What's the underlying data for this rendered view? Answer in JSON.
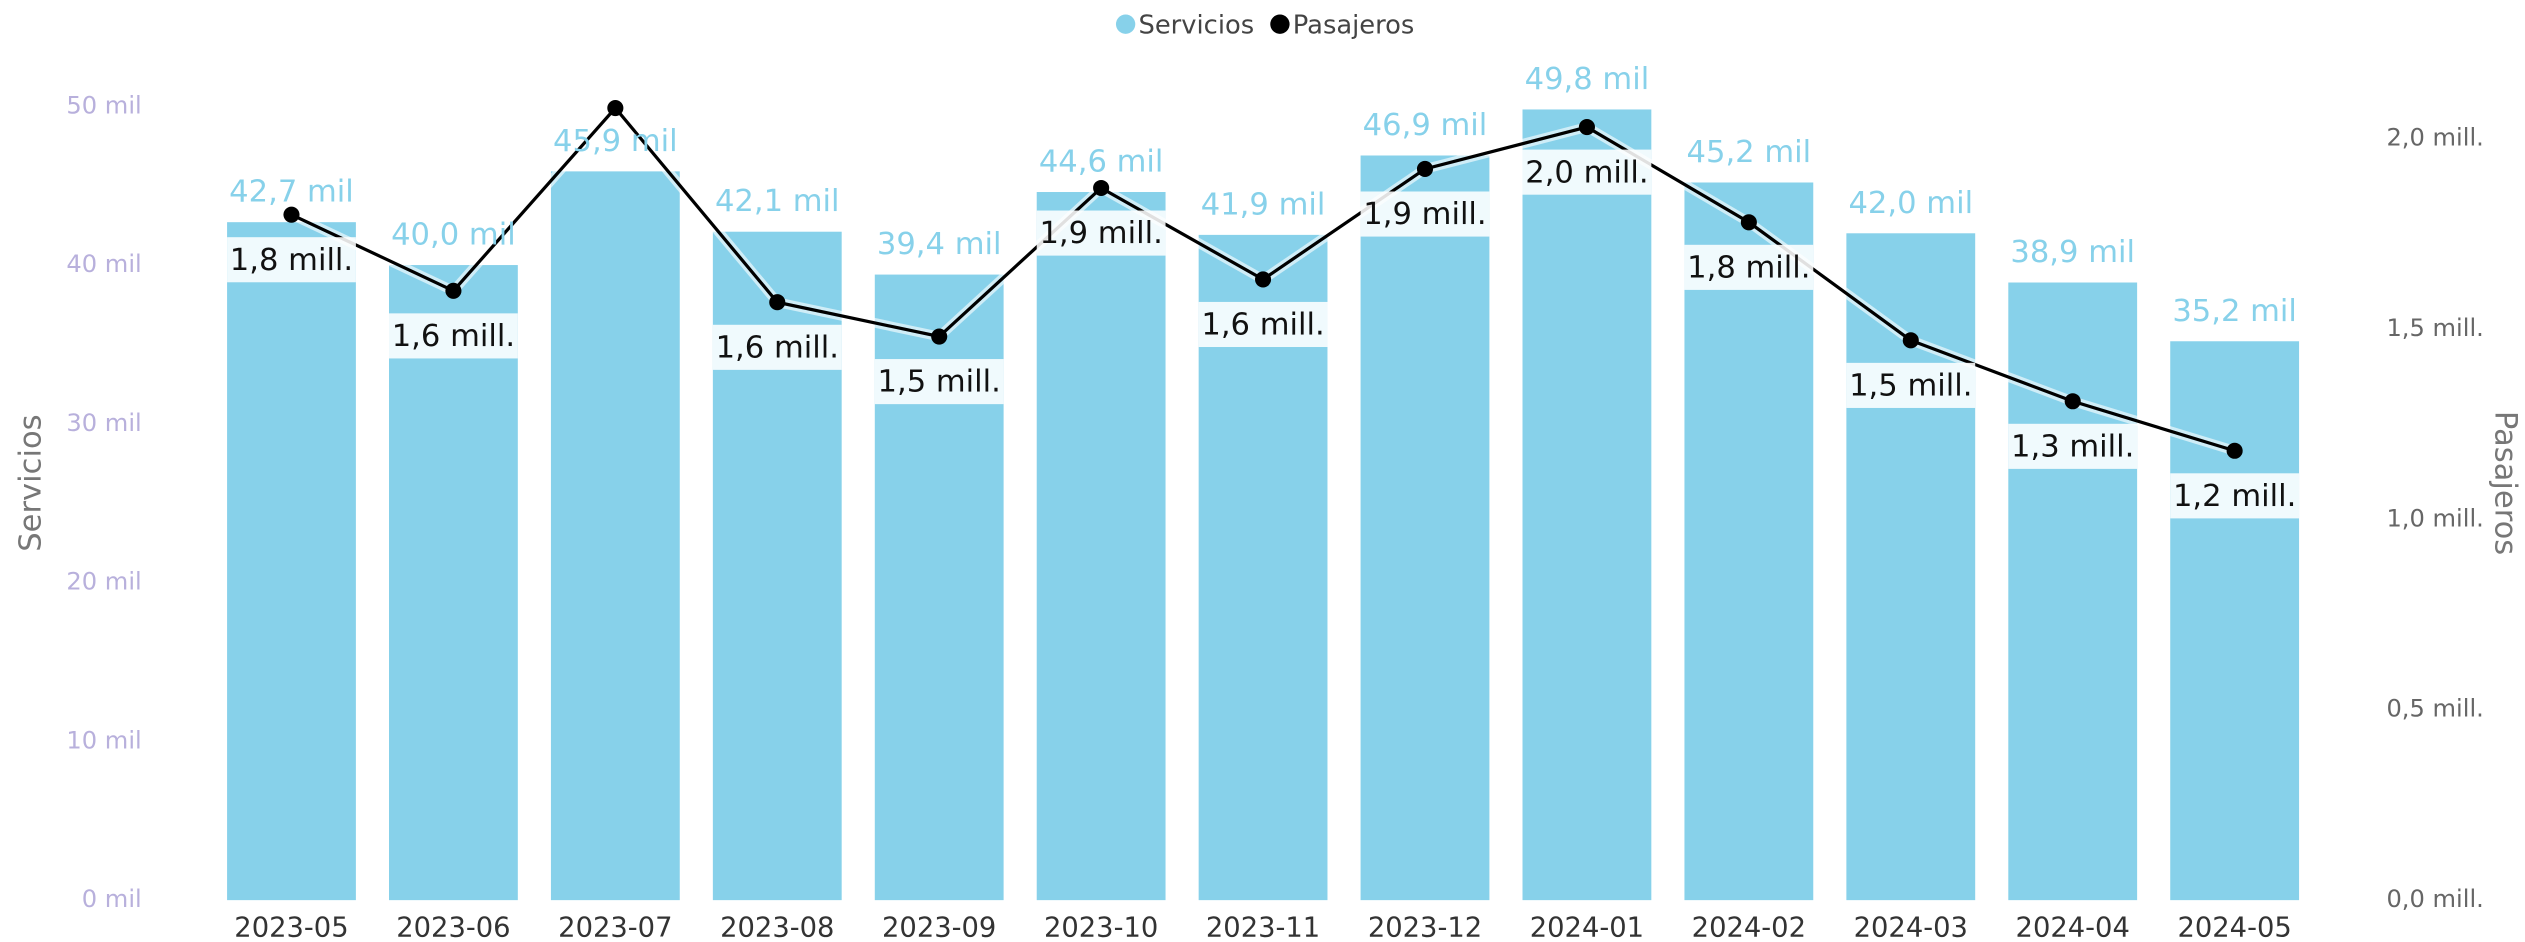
{
  "chart_data": {
    "type": "bar",
    "categories": [
      "2023-05",
      "2023-06",
      "2023-07",
      "2023-08",
      "2023-09",
      "2023-10",
      "2023-11",
      "2023-12",
      "2024-01",
      "2024-02",
      "2024-03",
      "2024-04",
      "2024-05"
    ],
    "series": [
      {
        "name": "Servicios",
        "type": "bar",
        "color": "#87d1ea",
        "values": [
          42.7,
          40.0,
          45.9,
          42.1,
          39.4,
          44.6,
          41.9,
          46.9,
          49.8,
          45.2,
          42.0,
          38.9,
          35.2
        ],
        "value_labels": [
          "42,7 mil",
          "40,0 mil",
          "45,9 mil",
          "42,1 mil",
          "39,4 mil",
          "44,6 mil",
          "41,9 mil",
          "46,9 mil",
          "49,8 mil",
          "45,2 mil",
          "42,0 mil",
          "38,9 mil",
          "35,2 mil"
        ]
      },
      {
        "name": "Pasajeros",
        "type": "line",
        "axis": "y2",
        "color": "#000000",
        "values": [
          1.8,
          1.6,
          2.08,
          1.57,
          1.48,
          1.87,
          1.63,
          1.92,
          2.03,
          1.78,
          1.47,
          1.31,
          1.18
        ],
        "value_labels": [
          "1,8 mill.",
          "1,6 mill.",
          null,
          "1,6 mill.",
          "1,5 mill.",
          "1,9 mill.",
          "1,6 mill.",
          "1,9 mill.",
          "2,0 mill.",
          "1,8 mill.",
          "1,5 mill.",
          "1,3 mill.",
          "1,2 mill."
        ]
      }
    ],
    "y_label": "Servicios",
    "y2_label": "Pasajeros",
    "ylim": [
      0,
      50
    ],
    "yticks": [
      {
        "value": 0,
        "label": "0 mil"
      },
      {
        "value": 10,
        "label": "10 mil"
      },
      {
        "value": 20,
        "label": "20 mil"
      },
      {
        "value": 30,
        "label": "30 mil"
      },
      {
        "value": 40,
        "label": "40 mil"
      },
      {
        "value": 50,
        "label": "50 mil"
      }
    ],
    "y2lim": [
      0,
      2.0
    ],
    "y2ticks": [
      {
        "value": 0,
        "label": "0,0 mill."
      },
      {
        "value": 0.5,
        "label": "0,5 mill."
      },
      {
        "value": 1.0,
        "label": "1,0 mill."
      },
      {
        "value": 1.5,
        "label": "1,5 mill."
      },
      {
        "value": 2.0,
        "label": "2,0 mill."
      }
    ],
    "legend": "top"
  }
}
